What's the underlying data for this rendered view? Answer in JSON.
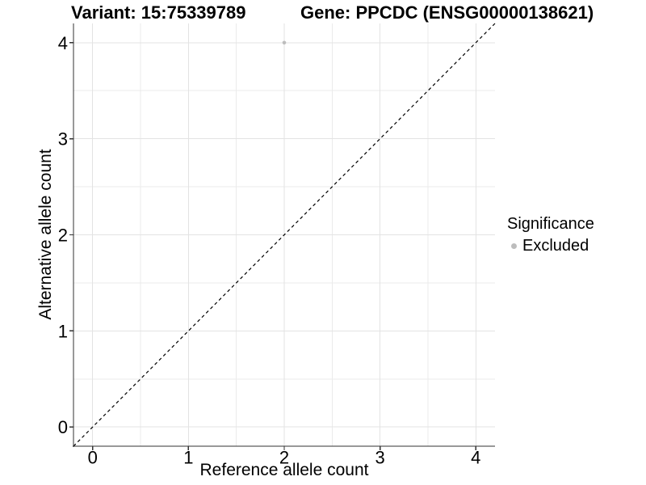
{
  "figure": {
    "title_left": "Variant: 15:75339789",
    "title_right": "Gene: PPCDC (ENSG00000138621)"
  },
  "axes": {
    "x": {
      "label": "Reference allele count",
      "ticks": [
        0,
        1,
        2,
        3,
        4
      ]
    },
    "y": {
      "label": "Alternative allele count",
      "ticks": [
        0,
        1,
        2,
        3,
        4
      ]
    }
  },
  "legend": {
    "title": "Significance",
    "items": [
      {
        "label": "Excluded",
        "color": "#bdbdbd",
        "marker": "circle"
      }
    ]
  },
  "chart_data": {
    "type": "scatter",
    "title": "Variant: 15:75339789 / Gene: PPCDC (ENSG00000138621)",
    "xlabel": "Reference allele count",
    "ylabel": "Alternative allele count",
    "xlim": [
      -0.2,
      4.2
    ],
    "ylim": [
      -0.2,
      4.2
    ],
    "x_major_ticks": [
      0,
      1,
      2,
      3,
      4
    ],
    "y_major_ticks": [
      0,
      1,
      2,
      3,
      4
    ],
    "x_minor_ticks": [
      0.5,
      1.5,
      2.5,
      3.5
    ],
    "y_minor_ticks": [
      0.5,
      1.5,
      2.5,
      3.5
    ],
    "grid": "on",
    "legend_position": "right",
    "series": [
      {
        "name": "Excluded",
        "color": "#bdbdbd",
        "marker": "circle",
        "points": [
          {
            "x": 2,
            "y": 4
          }
        ]
      }
    ],
    "reference_line": {
      "type": "identity",
      "style": "dashed",
      "color": "#000000",
      "from": [
        -0.2,
        -0.2
      ],
      "to": [
        4.2,
        4.2
      ]
    }
  },
  "colors": {
    "background": "#ffffff",
    "grid_major": "#e3e3e3",
    "grid_minor": "#ebebeb",
    "axis_line": "#333333",
    "text": "#000000",
    "point": "#bdbdbd"
  }
}
